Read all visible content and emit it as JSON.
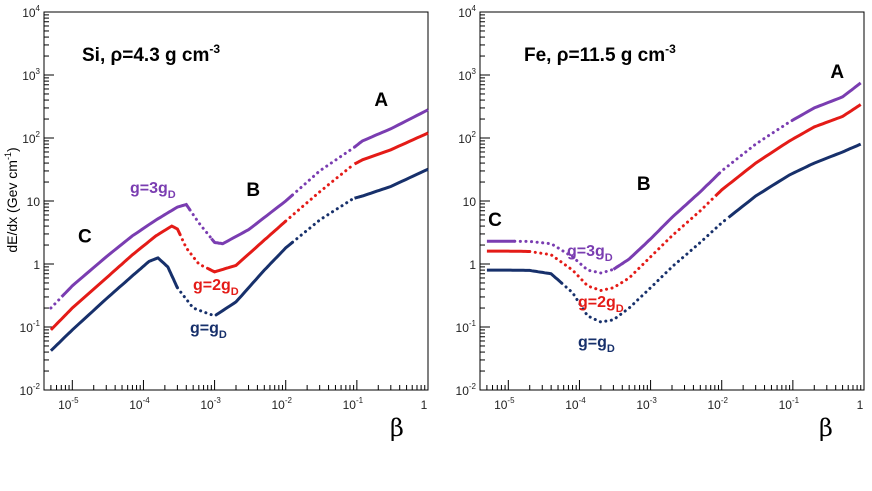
{
  "figure": {
    "ylabel": "dE/dx  (Gev cm",
    "ylabel_sup": "-1",
    "ylabel_close": ")",
    "xlabel_symbol": "β",
    "colors": {
      "g1": "#17306b",
      "g2": "#e41b17",
      "g3": "#7a3db1",
      "axis": "#000000"
    }
  },
  "chart_data": [
    {
      "type": "line",
      "title": "Si, ρ=4.3 g cm",
      "title_sup": "-3",
      "xlabel": "β",
      "ylabel": "dE/dx (Gev cm-1)",
      "xscale": "log",
      "yscale": "log",
      "xlim": [
        4e-06,
        1
      ],
      "ylim": [
        0.01,
        10000
      ],
      "x_ticks": [
        {
          "b": "10",
          "e": "-5"
        },
        {
          "b": "10",
          "e": "-4"
        },
        {
          "b": "10",
          "e": "-3"
        },
        {
          "b": "10",
          "e": "-2"
        },
        {
          "b": "10",
          "e": "-1"
        },
        {
          "b": "1",
          "e": ""
        }
      ],
      "y_ticks": [
        {
          "b": "10",
          "e": "-2"
        },
        {
          "b": "10",
          "e": "-1"
        },
        {
          "b": "1",
          "e": ""
        },
        {
          "b": "10",
          "e": ""
        },
        {
          "b": "10",
          "e": "2"
        },
        {
          "b": "10",
          "e": "3"
        },
        {
          "b": "10",
          "e": "4"
        }
      ],
      "series": [
        {
          "name": "g=gD",
          "label_main": "g=g",
          "label_sub": "D",
          "color": "#17306b",
          "points": [
            [
              5e-06,
              0.042
            ],
            [
              1e-05,
              0.09
            ],
            [
              3e-05,
              0.28
            ],
            [
              7e-05,
              0.65
            ],
            [
              0.00012,
              1.1
            ],
            [
              0.00016,
              1.25
            ],
            [
              0.00022,
              0.9
            ],
            [
              0.0003,
              0.42
            ],
            [
              0.0005,
              0.2
            ],
            [
              0.001,
              0.15
            ],
            [
              0.002,
              0.25
            ],
            [
              0.005,
              0.8
            ],
            [
              0.01,
              1.8
            ],
            [
              0.03,
              5
            ],
            [
              0.09,
              11
            ],
            [
              0.12,
              12
            ],
            [
              0.3,
              17
            ],
            [
              1,
              32
            ]
          ],
          "dotted": [
            [
              0.0003,
              0.001
            ],
            [
              0.012,
              0.09
            ]
          ]
        },
        {
          "name": "g=2gD",
          "label_main": "g=2g",
          "label_sub": "D",
          "color": "#e41b17",
          "points": [
            [
              5e-06,
              0.09
            ],
            [
              1e-05,
              0.2
            ],
            [
              3e-05,
              0.6
            ],
            [
              7e-05,
              1.4
            ],
            [
              0.00015,
              2.8
            ],
            [
              0.00025,
              4
            ],
            [
              0.0003,
              3.6
            ],
            [
              0.0004,
              1.8
            ],
            [
              0.0006,
              1
            ],
            [
              0.001,
              0.75
            ],
            [
              0.002,
              0.95
            ],
            [
              0.005,
              2.4
            ],
            [
              0.01,
              4.8
            ],
            [
              0.03,
              14
            ],
            [
              0.09,
              38
            ],
            [
              0.12,
              45
            ],
            [
              0.3,
              65
            ],
            [
              1,
              120
            ]
          ],
          "dotted": [
            [
              0.00032,
              0.0008
            ],
            [
              0.01,
              0.09
            ]
          ]
        },
        {
          "name": "g=3gD",
          "label_main": "g=3g",
          "label_sub": "D",
          "color": "#7a3db1",
          "points": [
            [
              5e-06,
              0.2
            ],
            [
              1e-05,
              0.45
            ],
            [
              3e-05,
              1.3
            ],
            [
              7e-05,
              2.8
            ],
            [
              0.00015,
              5
            ],
            [
              0.0003,
              8
            ],
            [
              0.0004,
              8.8
            ],
            [
              0.0006,
              4.5
            ],
            [
              0.001,
              2.2
            ],
            [
              0.0013,
              2.1
            ],
            [
              0.003,
              3.5
            ],
            [
              0.01,
              10
            ],
            [
              0.03,
              30
            ],
            [
              0.09,
              70
            ],
            [
              0.12,
              90
            ],
            [
              0.3,
              140
            ],
            [
              1,
              280
            ]
          ],
          "dotted": [
            [
              4.5e-06,
              7e-06
            ],
            [
              0.00045,
              0.0009
            ],
            [
              0.012,
              0.09
            ]
          ]
        }
      ],
      "annotations": [
        {
          "text": "A",
          "x": 0.22,
          "y": 320
        },
        {
          "text": "B",
          "x": 0.0035,
          "y": 12
        },
        {
          "text": "C",
          "x": 1.5e-05,
          "y": 2.2
        }
      ]
    },
    {
      "type": "line",
      "title": "Fe, ρ=11.5 g cm",
      "title_sup": "-3",
      "xlabel": "β",
      "ylabel": "dE/dx (Gev cm-1)",
      "xscale": "log",
      "yscale": "log",
      "xlim": [
        4e-06,
        1
      ],
      "ylim": [
        0.01,
        10000
      ],
      "x_ticks": [
        {
          "b": "10",
          "e": "-5"
        },
        {
          "b": "10",
          "e": "-4"
        },
        {
          "b": "10",
          "e": "-3"
        },
        {
          "b": "10",
          "e": "-2"
        },
        {
          "b": "10",
          "e": "-1"
        },
        {
          "b": "1",
          "e": ""
        }
      ],
      "y_ticks": [
        {
          "b": "10",
          "e": "-2"
        },
        {
          "b": "10",
          "e": "-1"
        },
        {
          "b": "1",
          "e": ""
        },
        {
          "b": "10",
          "e": ""
        },
        {
          "b": "10",
          "e": "2"
        },
        {
          "b": "10",
          "e": "3"
        },
        {
          "b": "10",
          "e": "4"
        }
      ],
      "series": [
        {
          "name": "g=gD",
          "label_main": "g=g",
          "label_sub": "D",
          "color": "#17306b",
          "points": [
            [
              5e-06,
              0.8
            ],
            [
              1e-05,
              0.8
            ],
            [
              2e-05,
              0.79
            ],
            [
              4e-05,
              0.7
            ],
            [
              8e-05,
              0.35
            ],
            [
              0.00013,
              0.15
            ],
            [
              0.0002,
              0.12
            ],
            [
              0.0003,
              0.13
            ],
            [
              0.0005,
              0.2
            ],
            [
              0.001,
              0.42
            ],
            [
              0.002,
              0.9
            ],
            [
              0.005,
              2.2
            ],
            [
              0.01,
              4.5
            ],
            [
              0.03,
              12
            ],
            [
              0.09,
              26
            ],
            [
              0.2,
              40
            ],
            [
              0.5,
              60
            ],
            [
              0.9,
              80
            ]
          ],
          "dotted": [
            [
              5.5e-05,
              0.012
            ]
          ]
        },
        {
          "name": "g=2gD",
          "label_main": "g=2g",
          "label_sub": "D",
          "color": "#e41b17",
          "points": [
            [
              5e-06,
              1.6
            ],
            [
              1e-05,
              1.6
            ],
            [
              2e-05,
              1.58
            ],
            [
              4e-05,
              1.4
            ],
            [
              8e-05,
              0.8
            ],
            [
              0.00013,
              0.45
            ],
            [
              0.0002,
              0.38
            ],
            [
              0.0003,
              0.42
            ],
            [
              0.0005,
              0.6
            ],
            [
              0.001,
              1.3
            ],
            [
              0.002,
              2.8
            ],
            [
              0.005,
              7
            ],
            [
              0.01,
              15
            ],
            [
              0.03,
              40
            ],
            [
              0.09,
              90
            ],
            [
              0.2,
              150
            ],
            [
              0.5,
              220
            ],
            [
              0.9,
              340
            ]
          ],
          "dotted": [
            [
              2e-05,
              0.008
            ]
          ]
        },
        {
          "name": "g=3gD",
          "label_main": "g=3g",
          "label_sub": "D",
          "color": "#7a3db1",
          "points": [
            [
              5e-06,
              2.3
            ],
            [
              1e-05,
              2.3
            ],
            [
              2e-05,
              2.28
            ],
            [
              4e-05,
              2.1
            ],
            [
              8e-05,
              1.3
            ],
            [
              0.00013,
              0.8
            ],
            [
              0.0002,
              0.72
            ],
            [
              0.0003,
              0.82
            ],
            [
              0.0005,
              1.2
            ],
            [
              0.001,
              2.5
            ],
            [
              0.002,
              5.5
            ],
            [
              0.005,
              14
            ],
            [
              0.01,
              30
            ],
            [
              0.03,
              80
            ],
            [
              0.09,
              180
            ],
            [
              0.2,
              300
            ],
            [
              0.5,
              450
            ],
            [
              0.9,
              750
            ]
          ],
          "dotted": [
            [
              1.2e-05,
              0.0003
            ],
            [
              0.009,
              0.09
            ]
          ]
        }
      ],
      "annotations": [
        {
          "text": "A",
          "x": 0.42,
          "y": 900
        },
        {
          "text": "B",
          "x": 0.0008,
          "y": 15
        },
        {
          "text": "C",
          "x": 6.5e-06,
          "y": 4
        }
      ]
    }
  ]
}
